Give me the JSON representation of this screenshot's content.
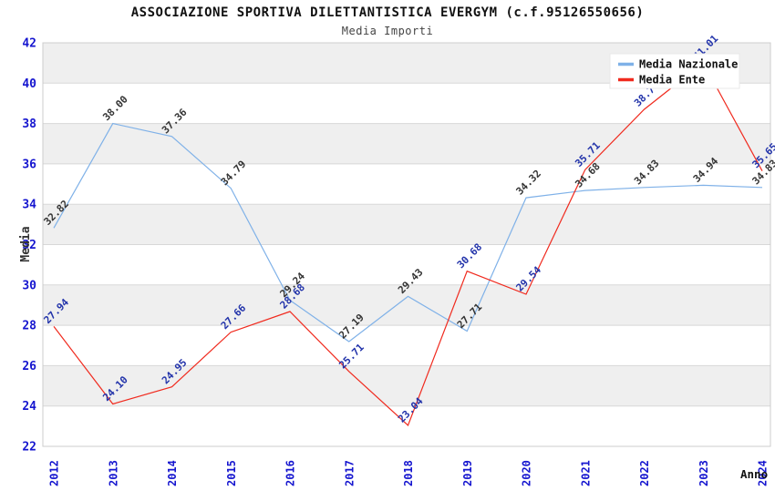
{
  "chart": {
    "title": "ASSOCIAZIONE SPORTIVA DILETTANTISTICA EVERGYM (c.f.95126550656)",
    "subtitle": "Media Importi"
  },
  "chart_data": {
    "type": "line",
    "title": "ASSOCIAZIONE SPORTIVA DILETTANTISTICA EVERGYM (c.f.95126550656)",
    "subtitle": "Media Importi",
    "xlabel": "Anno",
    "ylabel": "Media",
    "x": [
      2012,
      2013,
      2014,
      2015,
      2016,
      2017,
      2018,
      2019,
      2020,
      2021,
      2022,
      2023,
      2024
    ],
    "series": [
      {
        "name": "Media Nazionale",
        "color": "#7fb1e8",
        "label_color": "#333333",
        "values": [
          32.82,
          38.0,
          37.36,
          34.79,
          29.24,
          27.19,
          29.43,
          27.71,
          34.32,
          34.68,
          34.83,
          34.94,
          34.83
        ]
      },
      {
        "name": "Media Ente",
        "color": "#f02a1e",
        "label_color": "#2233aa",
        "values": [
          27.94,
          24.1,
          24.95,
          27.66,
          28.68,
          25.71,
          23.04,
          30.68,
          29.54,
          35.71,
          38.7,
          41.01,
          35.65
        ]
      }
    ],
    "ylim": [
      22,
      42
    ],
    "ytick_step": 2,
    "yticks": [
      22,
      24,
      26,
      28,
      30,
      32,
      34,
      36,
      38,
      40,
      42
    ],
    "grid": "horizontal",
    "band_fill": "#efefef",
    "gridline_color": "#d8d8d8",
    "plot_border_color": "#cccccc",
    "axis_tick_color": "#1515cf",
    "legend_position": "top-right",
    "legend_labels": [
      "Media Nazionale",
      "Media Ente"
    ],
    "label_decimals": 2
  }
}
